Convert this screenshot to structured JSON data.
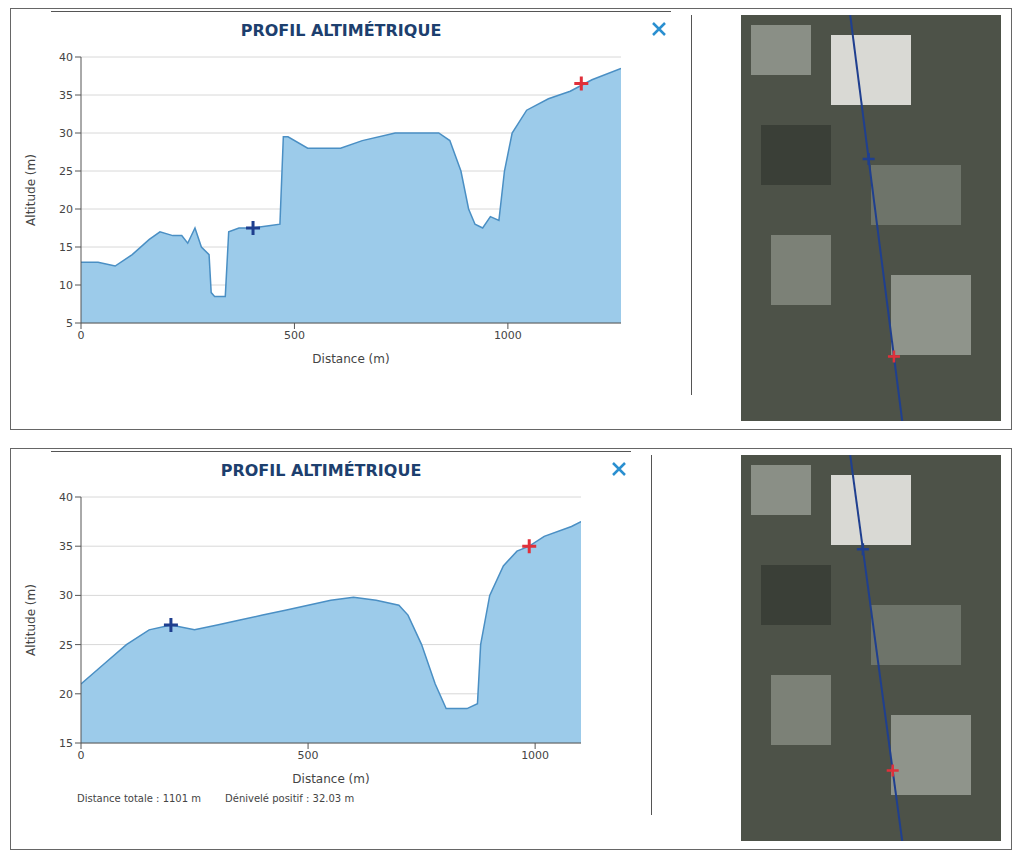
{
  "chart_data": [
    {
      "type": "area",
      "title": "PROFIL ALTIMÉTRIQUE",
      "x_label": "Distance (m)",
      "y_label": "Altitude (m)",
      "x": [
        0,
        40,
        80,
        120,
        160,
        185,
        215,
        236,
        250,
        267,
        282,
        300,
        305,
        313,
        338,
        346,
        370,
        403,
        440,
        466,
        474,
        485,
        531,
        608,
        659,
        736,
        838,
        864,
        877,
        890,
        908,
        923,
        941,
        959,
        979,
        992,
        1010,
        1044,
        1095,
        1146,
        1197,
        1265
      ],
      "values": [
        13,
        13,
        12.5,
        14,
        16,
        17,
        16.5,
        16.5,
        15.5,
        17.5,
        15,
        14,
        9,
        8.5,
        8.5,
        17,
        17.5,
        17.5,
        17.8,
        18,
        29.5,
        29.5,
        28,
        28,
        29,
        30,
        30,
        29,
        27,
        25,
        20,
        18,
        17.5,
        19,
        18.5,
        25,
        30,
        33,
        34.5,
        35.5,
        37,
        38.5
      ],
      "color": "#9ccbea",
      "xlim": [
        0,
        1265
      ],
      "xticks": [
        0,
        500,
        1000
      ],
      "ylim": [
        5,
        40
      ],
      "yticks": [
        5,
        10,
        15,
        20,
        25,
        30,
        35,
        40
      ],
      "grid": true,
      "markers": [
        {
          "x": 403,
          "y": 17.5,
          "color": "#1f3f8f",
          "marker": "cross"
        },
        {
          "x": 1172,
          "y": 36.5,
          "color": "#e0303a",
          "marker": "cross"
        }
      ]
    },
    {
      "type": "area",
      "title": "PROFIL ALTIMÉTRIQUE",
      "x_label": "Distance (m)",
      "y_label": "Altitude (m)",
      "x": [
        0,
        50,
        100,
        150,
        198,
        250,
        300,
        350,
        400,
        450,
        500,
        550,
        600,
        650,
        700,
        720,
        750,
        780,
        804,
        850,
        873,
        880,
        900,
        930,
        960,
        987,
        1020,
        1080,
        1101
      ],
      "values": [
        21,
        23,
        25,
        26.5,
        27,
        26.5,
        27,
        27.5,
        28,
        28.5,
        29,
        29.5,
        29.8,
        29.5,
        29,
        28,
        25,
        21,
        18.5,
        18.5,
        19,
        25,
        30,
        33,
        34.5,
        35,
        36,
        37,
        37.5
      ],
      "color": "#9ccbea",
      "xlim": [
        0,
        1101
      ],
      "xticks": [
        0,
        500,
        1000
      ],
      "ylim": [
        15,
        40
      ],
      "yticks": [
        15,
        20,
        25,
        30,
        35,
        40
      ],
      "grid": true,
      "markers": [
        {
          "x": 198,
          "y": 27,
          "color": "#1f3f8f",
          "marker": "cross"
        },
        {
          "x": 987,
          "y": 35,
          "color": "#e0303a",
          "marker": "cross"
        }
      ],
      "footer": [
        "Distance totale : 1101 m",
        "Dénivelé positif : 32.03 m"
      ]
    }
  ]
}
